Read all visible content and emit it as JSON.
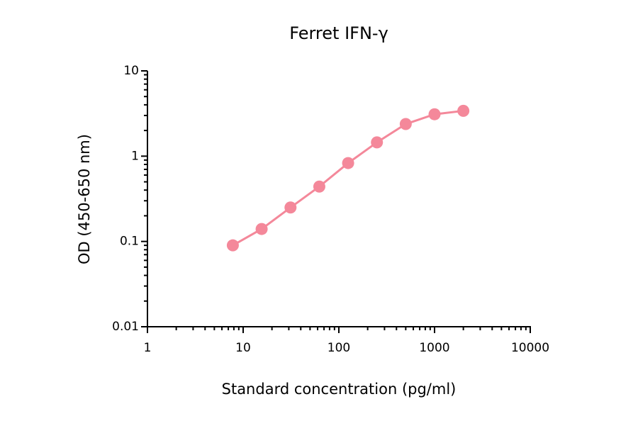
{
  "chart_data": {
    "type": "line",
    "title": "Ferret IFN-γ",
    "x_label": "Standard concentration (pg/ml)",
    "y_label": "OD (450-650 nm)",
    "x": [
      7.8,
      15.6,
      31.25,
      62.5,
      125,
      250,
      500,
      1000,
      2000
    ],
    "values": [
      0.09,
      0.14,
      0.25,
      0.44,
      0.83,
      1.45,
      2.38,
      3.1,
      3.4
    ],
    "color": "#f4889a",
    "x_log": true,
    "y_log": true,
    "xlim": [
      1,
      10000
    ],
    "xticks": [
      1,
      10,
      100,
      1000,
      10000
    ],
    "ylim": [
      0.01,
      10
    ],
    "yticks": [
      0.01,
      0.1,
      1,
      10
    ]
  }
}
